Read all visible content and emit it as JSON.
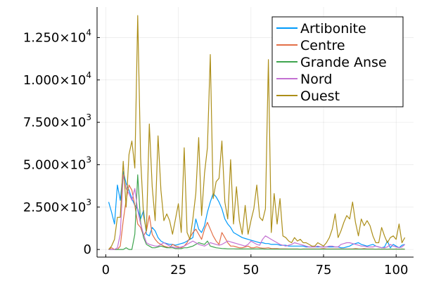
{
  "chart_data": {
    "type": "line",
    "title": "",
    "xlabel": "",
    "ylabel": "",
    "xlim": [
      -3,
      106
    ],
    "ylim": [
      -450,
      14300
    ],
    "grid": true,
    "legend_position": "top-right",
    "x_ticks": [
      {
        "value": 0,
        "label": "0"
      },
      {
        "value": 25,
        "label": "25"
      },
      {
        "value": 50,
        "label": "50"
      },
      {
        "value": 75,
        "label": "75"
      },
      {
        "value": 100,
        "label": "100"
      }
    ],
    "y_ticks": [
      {
        "value": 0,
        "label": "0",
        "exp": ""
      },
      {
        "value": 2500,
        "label": "2.500×10",
        "exp": "3"
      },
      {
        "value": 5000,
        "label": "5.000×10",
        "exp": "3"
      },
      {
        "value": 7500,
        "label": "7.500×10",
        "exp": "3"
      },
      {
        "value": 10000,
        "label": "1.000×10",
        "exp": "4"
      },
      {
        "value": 12500,
        "label": "1.250×10",
        "exp": "4"
      }
    ],
    "series": [
      {
        "name": "Artibonite",
        "color": "#009AFA",
        "x_start": 1,
        "values": [
          2800,
          2200,
          1500,
          3800,
          2900,
          4600,
          3900,
          3500,
          3000,
          2600,
          2400,
          1800,
          2300,
          900,
          800,
          1300,
          1100,
          700,
          500,
          400,
          350,
          300,
          300,
          250,
          300,
          350,
          400,
          500,
          600,
          700,
          1800,
          1200,
          1000,
          1400,
          2200,
          2800,
          3300,
          3100,
          2800,
          2400,
          1800,
          1500,
          1300,
          1000,
          900,
          800,
          700,
          650,
          600,
          550,
          500,
          450,
          400,
          400,
          350,
          350,
          300,
          300,
          300,
          250,
          250,
          250,
          200,
          200,
          200,
          200,
          200,
          200,
          150,
          150,
          150,
          150,
          150,
          150,
          150,
          150,
          150,
          150,
          150,
          150,
          100,
          100,
          150,
          200,
          300,
          350,
          400,
          300,
          250,
          200,
          250,
          300,
          200,
          150,
          100,
          150,
          500,
          100,
          300,
          200,
          100,
          250,
          300
        ]
      },
      {
        "name": "Centre",
        "color": "#E36F47",
        "x_start": 1,
        "values": [
          0,
          100,
          0,
          0,
          200,
          1700,
          2900,
          3800,
          3500,
          2600,
          1500,
          1300,
          800,
          1100,
          2000,
          900,
          600,
          400,
          300,
          200,
          150,
          100,
          300,
          200,
          150,
          100,
          200,
          400,
          700,
          1000,
          1200,
          900,
          600,
          1200,
          1600,
          1200,
          800,
          500,
          300,
          1000,
          700,
          400,
          200,
          200,
          150,
          100,
          100,
          150,
          200,
          100,
          100,
          150,
          100,
          80,
          80,
          100,
          60,
          50,
          50,
          40,
          40,
          40,
          30,
          30,
          30,
          30,
          20,
          30,
          30,
          30,
          30,
          30,
          30,
          40,
          50,
          30,
          30,
          30,
          30,
          30,
          40,
          30,
          30,
          30,
          30,
          50,
          40,
          30,
          50,
          30,
          30,
          30,
          20,
          30,
          20,
          30,
          20,
          30,
          20,
          30,
          20,
          30,
          20
        ]
      },
      {
        "name": "Grande Anse",
        "color": "#3EA44E",
        "x_start": 1,
        "values": [
          0,
          0,
          0,
          0,
          0,
          0,
          100,
          0,
          0,
          900,
          4400,
          1600,
          700,
          300,
          200,
          100,
          100,
          150,
          200,
          150,
          100,
          100,
          100,
          50,
          50,
          50,
          100,
          100,
          150,
          200,
          300,
          400,
          350,
          300,
          500,
          200,
          150,
          100,
          80,
          60,
          50,
          40,
          40,
          40,
          30,
          30,
          30,
          30,
          30,
          30,
          30,
          30,
          30,
          30,
          20,
          20,
          20,
          20,
          20,
          20,
          20,
          20,
          20,
          20,
          20,
          20,
          20,
          20,
          20,
          20,
          20,
          20,
          20,
          20,
          20,
          20,
          20,
          20,
          20,
          20,
          20,
          20,
          20,
          20,
          20,
          20,
          20,
          20,
          20,
          20,
          20,
          20,
          20,
          20,
          20,
          20,
          20,
          20,
          20,
          20,
          20,
          20,
          20
        ]
      },
      {
        "name": "Nord",
        "color": "#C371D2",
        "x_start": 1,
        "values": [
          0,
          0,
          0,
          100,
          900,
          4400,
          3600,
          3300,
          2900,
          3600,
          2300,
          1500,
          900,
          400,
          300,
          250,
          200,
          200,
          300,
          400,
          300,
          200,
          150,
          100,
          100,
          150,
          200,
          300,
          400,
          500,
          400,
          300,
          250,
          200,
          300,
          400,
          350,
          300,
          250,
          300,
          400,
          500,
          450,
          400,
          350,
          300,
          250,
          200,
          300,
          500,
          400,
          300,
          250,
          600,
          800,
          700,
          600,
          500,
          400,
          300,
          250,
          200,
          250,
          300,
          400,
          350,
          300,
          250,
          200,
          150,
          150,
          150,
          200,
          150,
          150,
          150,
          200,
          200,
          150,
          150,
          300,
          350,
          400,
          400,
          350,
          300,
          250,
          200,
          200,
          150,
          150,
          150,
          200,
          150,
          100,
          100,
          150,
          300,
          200,
          150,
          100,
          150,
          300
        ]
      },
      {
        "name": "Ouest",
        "color": "#AC8E18",
        "x_start": 1,
        "values": [
          0,
          200,
          600,
          1900,
          1900,
          5200,
          2500,
          5600,
          6400,
          4800,
          13800,
          5400,
          2000,
          1100,
          7400,
          3700,
          1700,
          6700,
          3500,
          1700,
          2100,
          1700,
          900,
          1800,
          2700,
          1000,
          6000,
          1000,
          600,
          1800,
          3300,
          6600,
          2000,
          4500,
          6000,
          11500,
          3000,
          4000,
          4200,
          6400,
          2800,
          1800,
          5300,
          1500,
          3700,
          1700,
          900,
          2600,
          900,
          1700,
          2400,
          3800,
          1900,
          1700,
          2400,
          11200,
          1000,
          3300,
          1500,
          3000,
          800,
          700,
          500,
          400,
          700,
          500,
          600,
          400,
          400,
          300,
          200,
          200,
          400,
          300,
          200,
          400,
          700,
          1200,
          2100,
          700,
          1100,
          1600,
          2000,
          1800,
          2800,
          1600,
          800,
          1800,
          1400,
          1700,
          1400,
          800,
          400,
          400,
          1300,
          800,
          400,
          700,
          800,
          600,
          1500,
          400,
          700
        ]
      }
    ]
  }
}
